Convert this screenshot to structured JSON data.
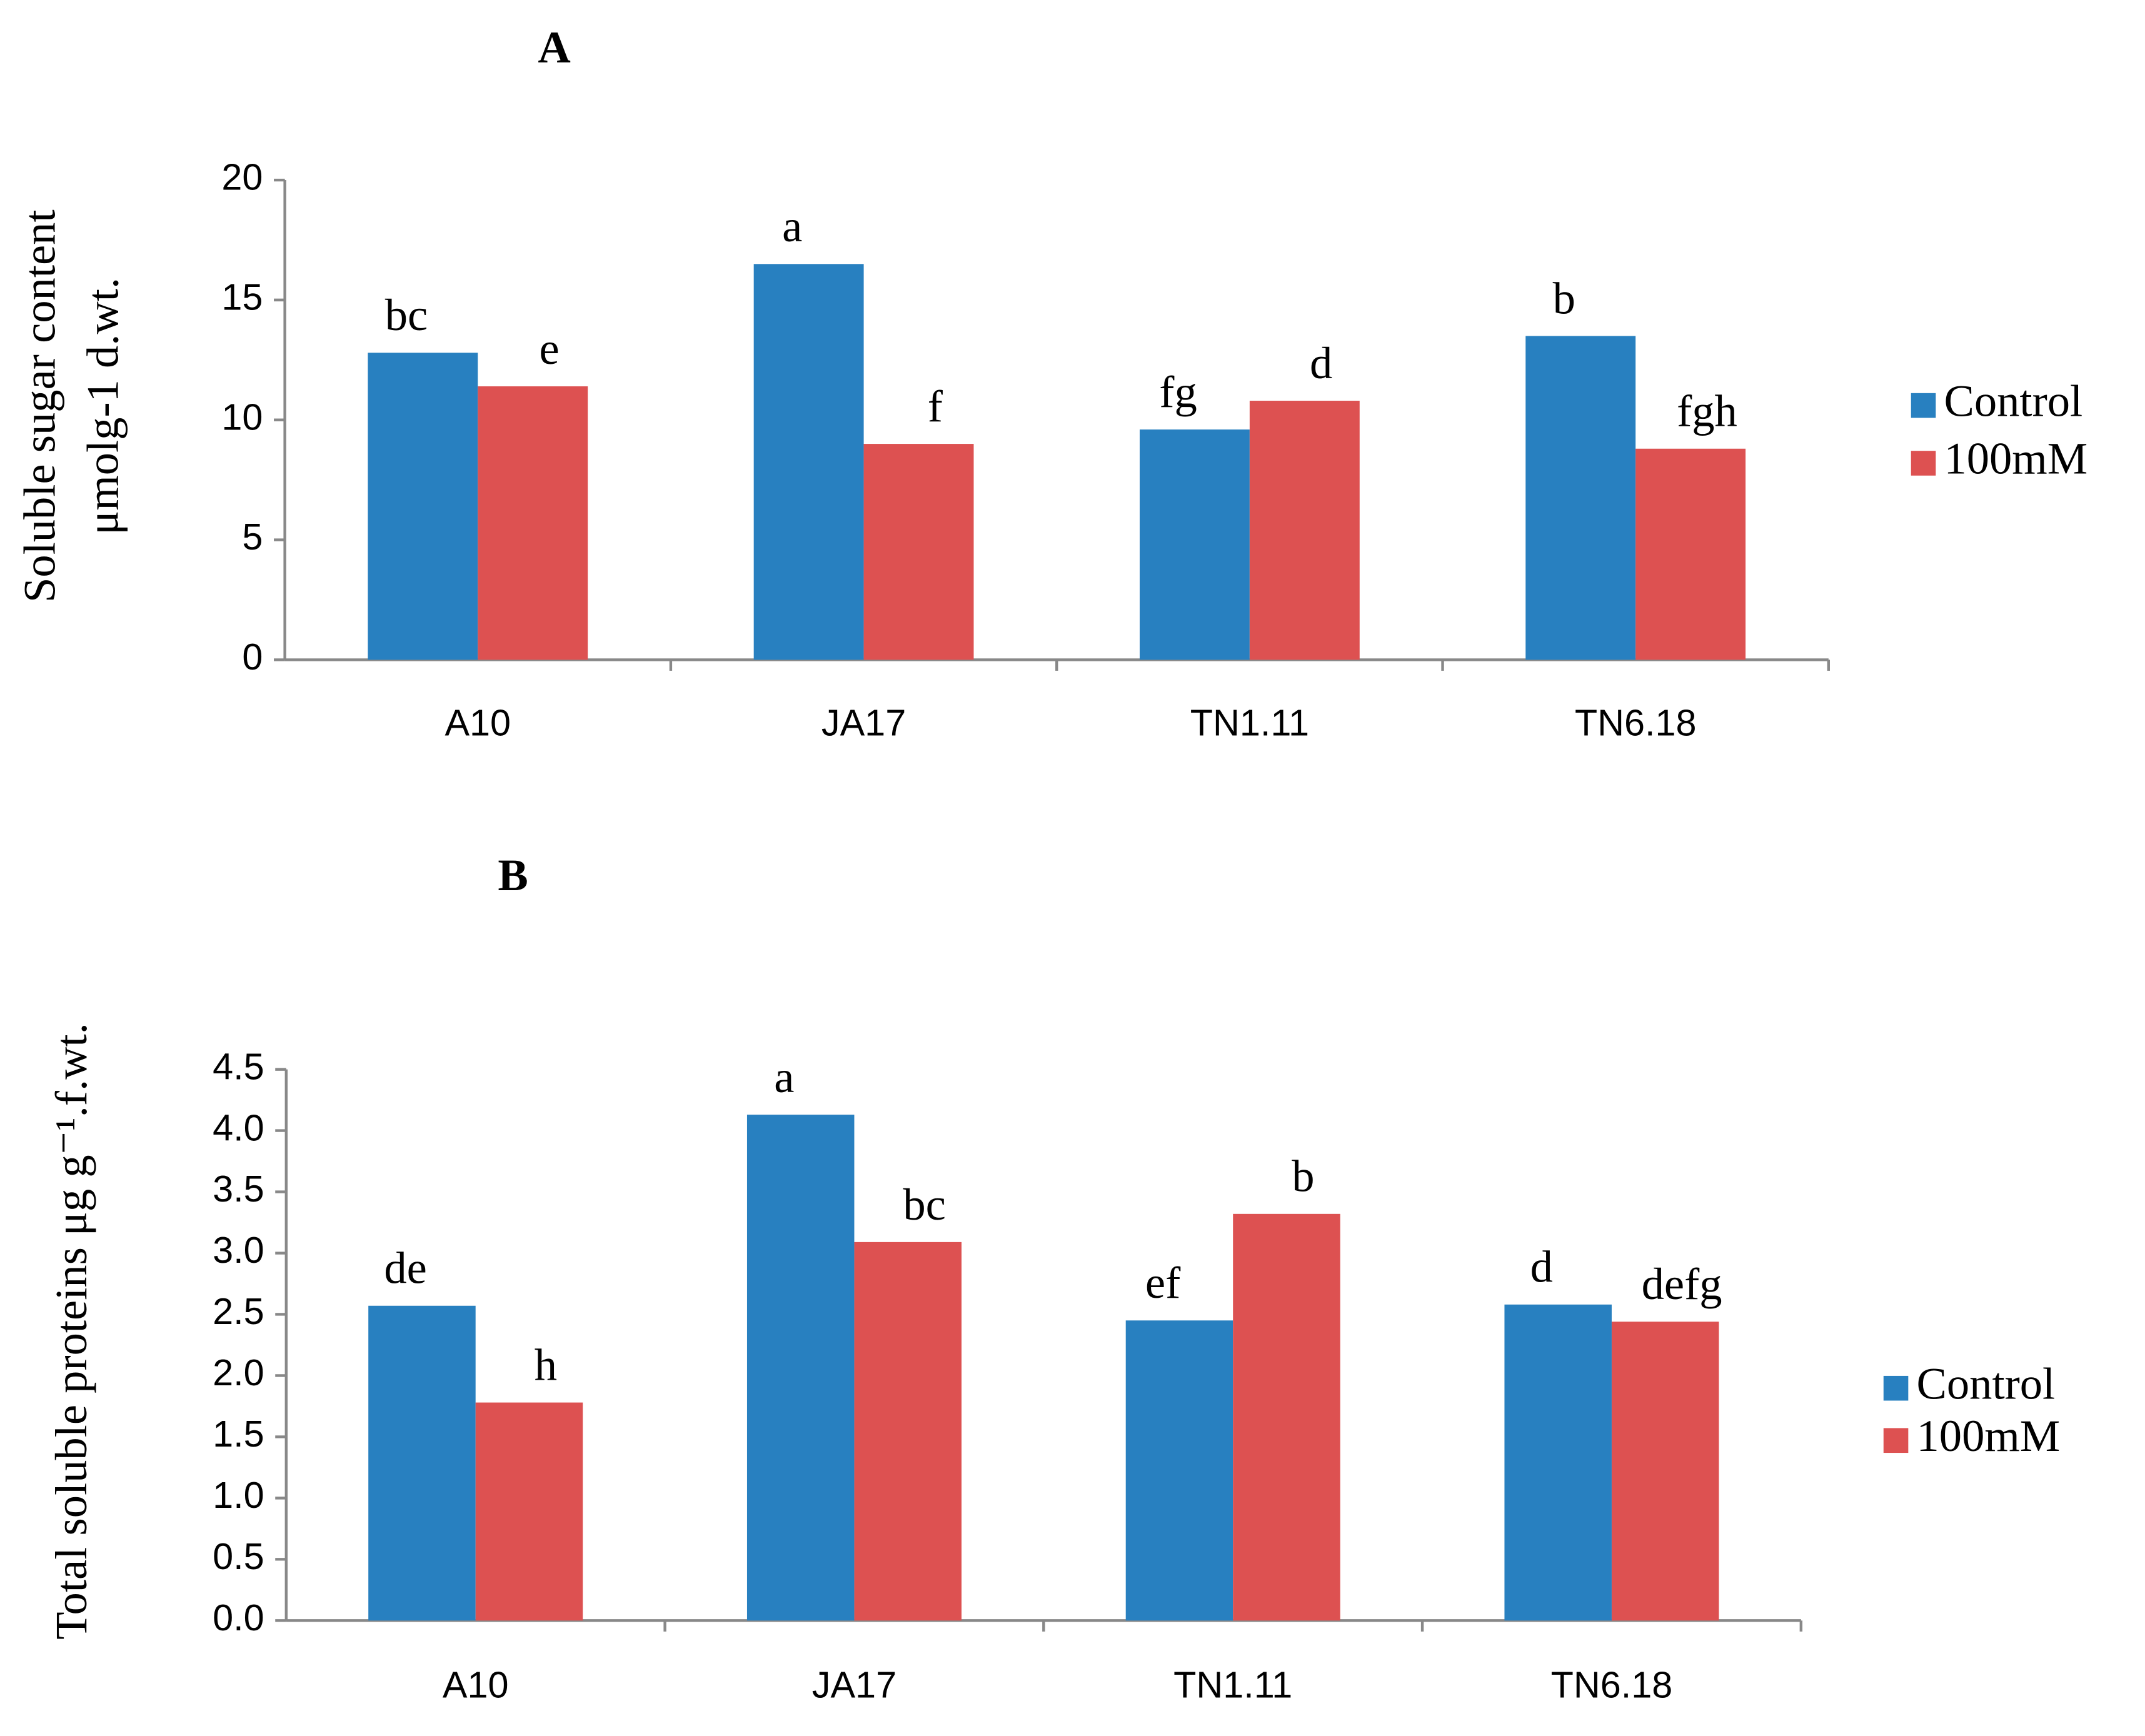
{
  "chart_data": [
    {
      "type": "bar",
      "title": "A",
      "y_label": [
        "Soluble sugar content",
        "μmolg-1 d.wt."
      ],
      "categories": [
        "A10",
        "JA17",
        "TN1.11",
        "TN6.18"
      ],
      "series": [
        {
          "name": "Control",
          "color": "#2880c0",
          "values": [
            12.8,
            16.5,
            9.6,
            13.5
          ],
          "letters": [
            "bc",
            "a",
            "fg",
            "b"
          ]
        },
        {
          "name": "100mM",
          "color": "#dd5151",
          "values": [
            11.4,
            9.0,
            10.8,
            8.8
          ],
          "letters": [
            "e",
            "f",
            "d",
            "fgh"
          ]
        }
      ],
      "ylim": [
        0,
        20
      ],
      "yticks": [
        0,
        5,
        10,
        15,
        20
      ],
      "grid": false,
      "legend": "right"
    },
    {
      "type": "bar",
      "title": "B",
      "y_label": [
        "Total soluble proteins  μg g⁻¹.f.wt."
      ],
      "categories": [
        "A10",
        "JA17",
        "TN1.11",
        "TN6.18"
      ],
      "series": [
        {
          "name": "Control",
          "color": "#2880c0",
          "values": [
            2.57,
            4.13,
            2.45,
            2.58
          ],
          "letters": [
            "de",
            "a",
            "ef",
            "d"
          ]
        },
        {
          "name": "100mM",
          "color": "#dd5151",
          "values": [
            1.78,
            3.09,
            3.32,
            2.44
          ],
          "letters": [
            "h",
            "bc",
            "b",
            "defg"
          ]
        }
      ],
      "ylim": [
        0,
        4.5
      ],
      "yticks": [
        {
          "value": 0,
          "label": "0.0"
        },
        0.5,
        {
          "value": 1,
          "label": "1.0"
        },
        1.5,
        {
          "value": 2,
          "label": "2.0"
        },
        2.5,
        {
          "value": 3,
          "label": "3.0"
        },
        3.5,
        {
          "value": 4,
          "label": "4.0"
        },
        4.5
      ],
      "grid": false,
      "legend": "right"
    }
  ]
}
